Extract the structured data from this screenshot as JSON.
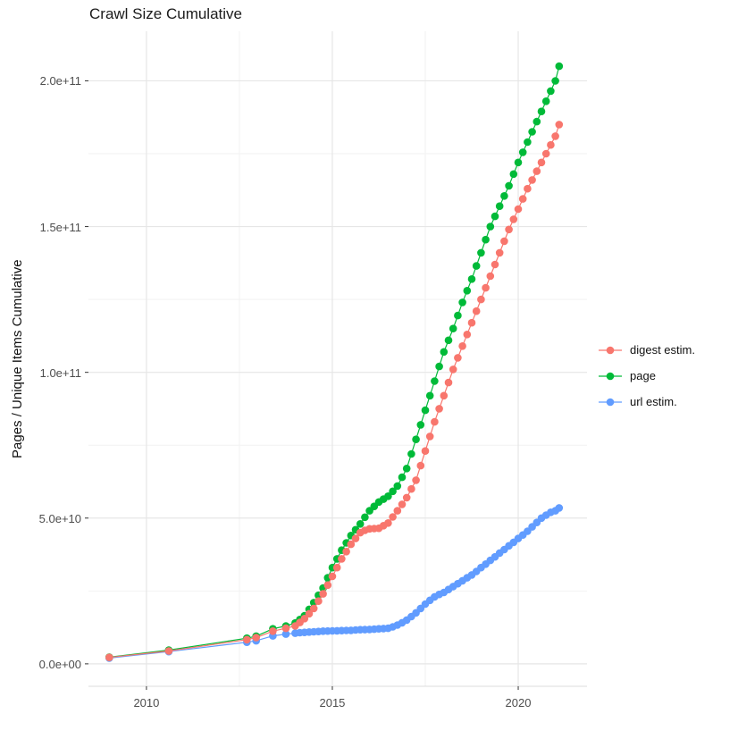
{
  "title": "Crawl Size Cumulative",
  "chart_data": {
    "type": "scatter",
    "title": "Crawl Size Cumulative",
    "xlabel": "",
    "ylabel": "Pages / Unique Items Cumulative",
    "x_unit": "year",
    "y_scale": "values are billions (1e9) of pages / unique items",
    "xlim": [
      2008.44,
      2021.85
    ],
    "ylim_e9": [
      -7.7,
      217
    ],
    "grid": true,
    "legend_position": "right",
    "background": "#ffffff",
    "grid_major_color": "#e6e6e6",
    "grid_minor_color": "#f2f2f2",
    "tick_color": "#333333",
    "x_ticks": [
      {
        "v": 2010,
        "label": "2010"
      },
      {
        "v": 2015,
        "label": "2015"
      },
      {
        "v": 2020,
        "label": "2020"
      }
    ],
    "x_minor": [
      2012.5,
      2017.5
    ],
    "y_ticks": [
      {
        "v": 0,
        "label": "0.0e+00"
      },
      {
        "v": 50,
        "label": "5.0e+10"
      },
      {
        "v": 100,
        "label": "1.0e+11"
      },
      {
        "v": 150,
        "label": "1.5e+11"
      },
      {
        "v": 200,
        "label": "2.0e+11"
      }
    ],
    "y_minor": [
      25,
      75,
      125,
      175
    ],
    "series": [
      {
        "name": "digest estim.",
        "color": "#F8766D",
        "points": [
          [
            2009.0,
            2.2
          ],
          [
            2010.6,
            4.4
          ],
          [
            2012.7,
            8.3
          ],
          [
            2012.95,
            9.0
          ],
          [
            2013.4,
            11.2
          ],
          [
            2013.75,
            12.2
          ],
          [
            2014.0,
            13.0
          ],
          [
            2014.125,
            14.2
          ],
          [
            2014.25,
            15.5
          ],
          [
            2014.375,
            17.2
          ],
          [
            2014.5,
            19.0
          ],
          [
            2014.625,
            21.5
          ],
          [
            2014.75,
            24.0
          ],
          [
            2014.875,
            27.0
          ],
          [
            2015.0,
            30.0
          ],
          [
            2015.125,
            33.0
          ],
          [
            2015.25,
            36.0
          ],
          [
            2015.375,
            38.5
          ],
          [
            2015.5,
            41.0
          ],
          [
            2015.625,
            43.0
          ],
          [
            2015.75,
            45.0
          ],
          [
            2015.875,
            45.8
          ],
          [
            2016.0,
            46.3
          ],
          [
            2016.125,
            46.4
          ],
          [
            2016.25,
            46.5
          ],
          [
            2016.375,
            47.4
          ],
          [
            2016.5,
            48.3
          ],
          [
            2016.625,
            50.4
          ],
          [
            2016.75,
            52.5
          ],
          [
            2016.875,
            54.7
          ],
          [
            2017.0,
            57.0
          ],
          [
            2017.125,
            60.0
          ],
          [
            2017.25,
            63.0
          ],
          [
            2017.375,
            68.0
          ],
          [
            2017.5,
            73.0
          ],
          [
            2017.625,
            78.0
          ],
          [
            2017.75,
            83.0
          ],
          [
            2017.875,
            87.5
          ],
          [
            2018.0,
            92.0
          ],
          [
            2018.125,
            96.5
          ],
          [
            2018.25,
            101.0
          ],
          [
            2018.375,
            105.0
          ],
          [
            2018.5,
            109.0
          ],
          [
            2018.625,
            113.0
          ],
          [
            2018.75,
            117.0
          ],
          [
            2018.875,
            121.0
          ],
          [
            2019.0,
            125.0
          ],
          [
            2019.125,
            129.0
          ],
          [
            2019.25,
            133.0
          ],
          [
            2019.375,
            137.0
          ],
          [
            2019.5,
            141.0
          ],
          [
            2019.625,
            145.0
          ],
          [
            2019.75,
            149.0
          ],
          [
            2019.875,
            152.5
          ],
          [
            2020.0,
            156.0
          ],
          [
            2020.125,
            159.5
          ],
          [
            2020.25,
            163.0
          ],
          [
            2020.375,
            166.0
          ],
          [
            2020.5,
            169.0
          ],
          [
            2020.625,
            172.0
          ],
          [
            2020.75,
            175.0
          ],
          [
            2020.875,
            178.0
          ],
          [
            2021.0,
            181.0
          ],
          [
            2021.1,
            185.0
          ]
        ]
      },
      {
        "name": "page",
        "color": "#00BA38",
        "points": [
          [
            2009.0,
            2.3
          ],
          [
            2010.6,
            4.7
          ],
          [
            2012.7,
            8.8
          ],
          [
            2012.95,
            9.5
          ],
          [
            2013.4,
            12.0
          ],
          [
            2013.75,
            13.0
          ],
          [
            2014.0,
            14.0
          ],
          [
            2014.125,
            15.2
          ],
          [
            2014.25,
            16.5
          ],
          [
            2014.375,
            18.7
          ],
          [
            2014.5,
            21.0
          ],
          [
            2014.625,
            23.5
          ],
          [
            2014.75,
            26.0
          ],
          [
            2014.875,
            29.5
          ],
          [
            2015.0,
            33.0
          ],
          [
            2015.125,
            36.0
          ],
          [
            2015.25,
            39.0
          ],
          [
            2015.375,
            41.5
          ],
          [
            2015.5,
            44.0
          ],
          [
            2015.625,
            46.0
          ],
          [
            2015.75,
            48.0
          ],
          [
            2015.875,
            50.3
          ],
          [
            2016.0,
            52.5
          ],
          [
            2016.125,
            54.0
          ],
          [
            2016.25,
            55.5
          ],
          [
            2016.375,
            56.5
          ],
          [
            2016.5,
            57.5
          ],
          [
            2016.625,
            59.2
          ],
          [
            2016.75,
            61.0
          ],
          [
            2016.875,
            64.0
          ],
          [
            2017.0,
            67.0
          ],
          [
            2017.125,
            72.0
          ],
          [
            2017.25,
            77.0
          ],
          [
            2017.375,
            82.0
          ],
          [
            2017.5,
            87.0
          ],
          [
            2017.625,
            92.0
          ],
          [
            2017.75,
            97.0
          ],
          [
            2017.875,
            102.0
          ],
          [
            2018.0,
            107.0
          ],
          [
            2018.125,
            111.0
          ],
          [
            2018.25,
            115.0
          ],
          [
            2018.375,
            119.5
          ],
          [
            2018.5,
            124.0
          ],
          [
            2018.625,
            128.0
          ],
          [
            2018.75,
            132.0
          ],
          [
            2018.875,
            136.5
          ],
          [
            2019.0,
            141.0
          ],
          [
            2019.125,
            145.5
          ],
          [
            2019.25,
            150.0
          ],
          [
            2019.375,
            153.5
          ],
          [
            2019.5,
            157.0
          ],
          [
            2019.625,
            160.5
          ],
          [
            2019.75,
            164.0
          ],
          [
            2019.875,
            168.0
          ],
          [
            2020.0,
            172.0
          ],
          [
            2020.125,
            175.5
          ],
          [
            2020.25,
            179.0
          ],
          [
            2020.375,
            182.5
          ],
          [
            2020.5,
            186.0
          ],
          [
            2020.625,
            189.5
          ],
          [
            2020.75,
            193.0
          ],
          [
            2020.875,
            196.5
          ],
          [
            2021.0,
            200.0
          ],
          [
            2021.1,
            205.0
          ]
        ]
      },
      {
        "name": "url estim.",
        "color": "#619CFF",
        "points": [
          [
            2009.0,
            2.0
          ],
          [
            2010.6,
            4.2
          ],
          [
            2012.7,
            7.4
          ],
          [
            2012.95,
            7.9
          ],
          [
            2013.4,
            9.6
          ],
          [
            2013.75,
            10.2
          ],
          [
            2014.0,
            10.5
          ],
          [
            2014.125,
            10.7
          ],
          [
            2014.25,
            10.8
          ],
          [
            2014.375,
            10.9
          ],
          [
            2014.5,
            11.0
          ],
          [
            2014.625,
            11.1
          ],
          [
            2014.75,
            11.2
          ],
          [
            2014.875,
            11.25
          ],
          [
            2015.0,
            11.3
          ],
          [
            2015.125,
            11.35
          ],
          [
            2015.25,
            11.4
          ],
          [
            2015.375,
            11.45
          ],
          [
            2015.5,
            11.5
          ],
          [
            2015.625,
            11.6
          ],
          [
            2015.75,
            11.7
          ],
          [
            2015.875,
            11.75
          ],
          [
            2016.0,
            11.8
          ],
          [
            2016.125,
            11.9
          ],
          [
            2016.25,
            12.0
          ],
          [
            2016.375,
            12.1
          ],
          [
            2016.5,
            12.2
          ],
          [
            2016.625,
            12.7
          ],
          [
            2016.75,
            13.3
          ],
          [
            2016.875,
            14.1
          ],
          [
            2017.0,
            15.0
          ],
          [
            2017.125,
            16.2
          ],
          [
            2017.25,
            17.5
          ],
          [
            2017.375,
            19.0
          ],
          [
            2017.5,
            20.5
          ],
          [
            2017.625,
            21.8
          ],
          [
            2017.75,
            23.0
          ],
          [
            2017.875,
            23.8
          ],
          [
            2018.0,
            24.5
          ],
          [
            2018.125,
            25.5
          ],
          [
            2018.25,
            26.5
          ],
          [
            2018.375,
            27.5
          ],
          [
            2018.5,
            28.5
          ],
          [
            2018.625,
            29.5
          ],
          [
            2018.75,
            30.5
          ],
          [
            2018.875,
            31.7
          ],
          [
            2019.0,
            33.0
          ],
          [
            2019.125,
            34.2
          ],
          [
            2019.25,
            35.5
          ],
          [
            2019.375,
            36.7
          ],
          [
            2019.5,
            38.0
          ],
          [
            2019.625,
            39.2
          ],
          [
            2019.75,
            40.5
          ],
          [
            2019.875,
            41.7
          ],
          [
            2020.0,
            43.0
          ],
          [
            2020.125,
            44.2
          ],
          [
            2020.25,
            45.5
          ],
          [
            2020.375,
            47.0
          ],
          [
            2020.5,
            48.5
          ],
          [
            2020.625,
            50.0
          ],
          [
            2020.75,
            51.0
          ],
          [
            2020.875,
            52.0
          ],
          [
            2021.0,
            52.5
          ],
          [
            2021.1,
            53.5
          ]
        ]
      }
    ]
  }
}
